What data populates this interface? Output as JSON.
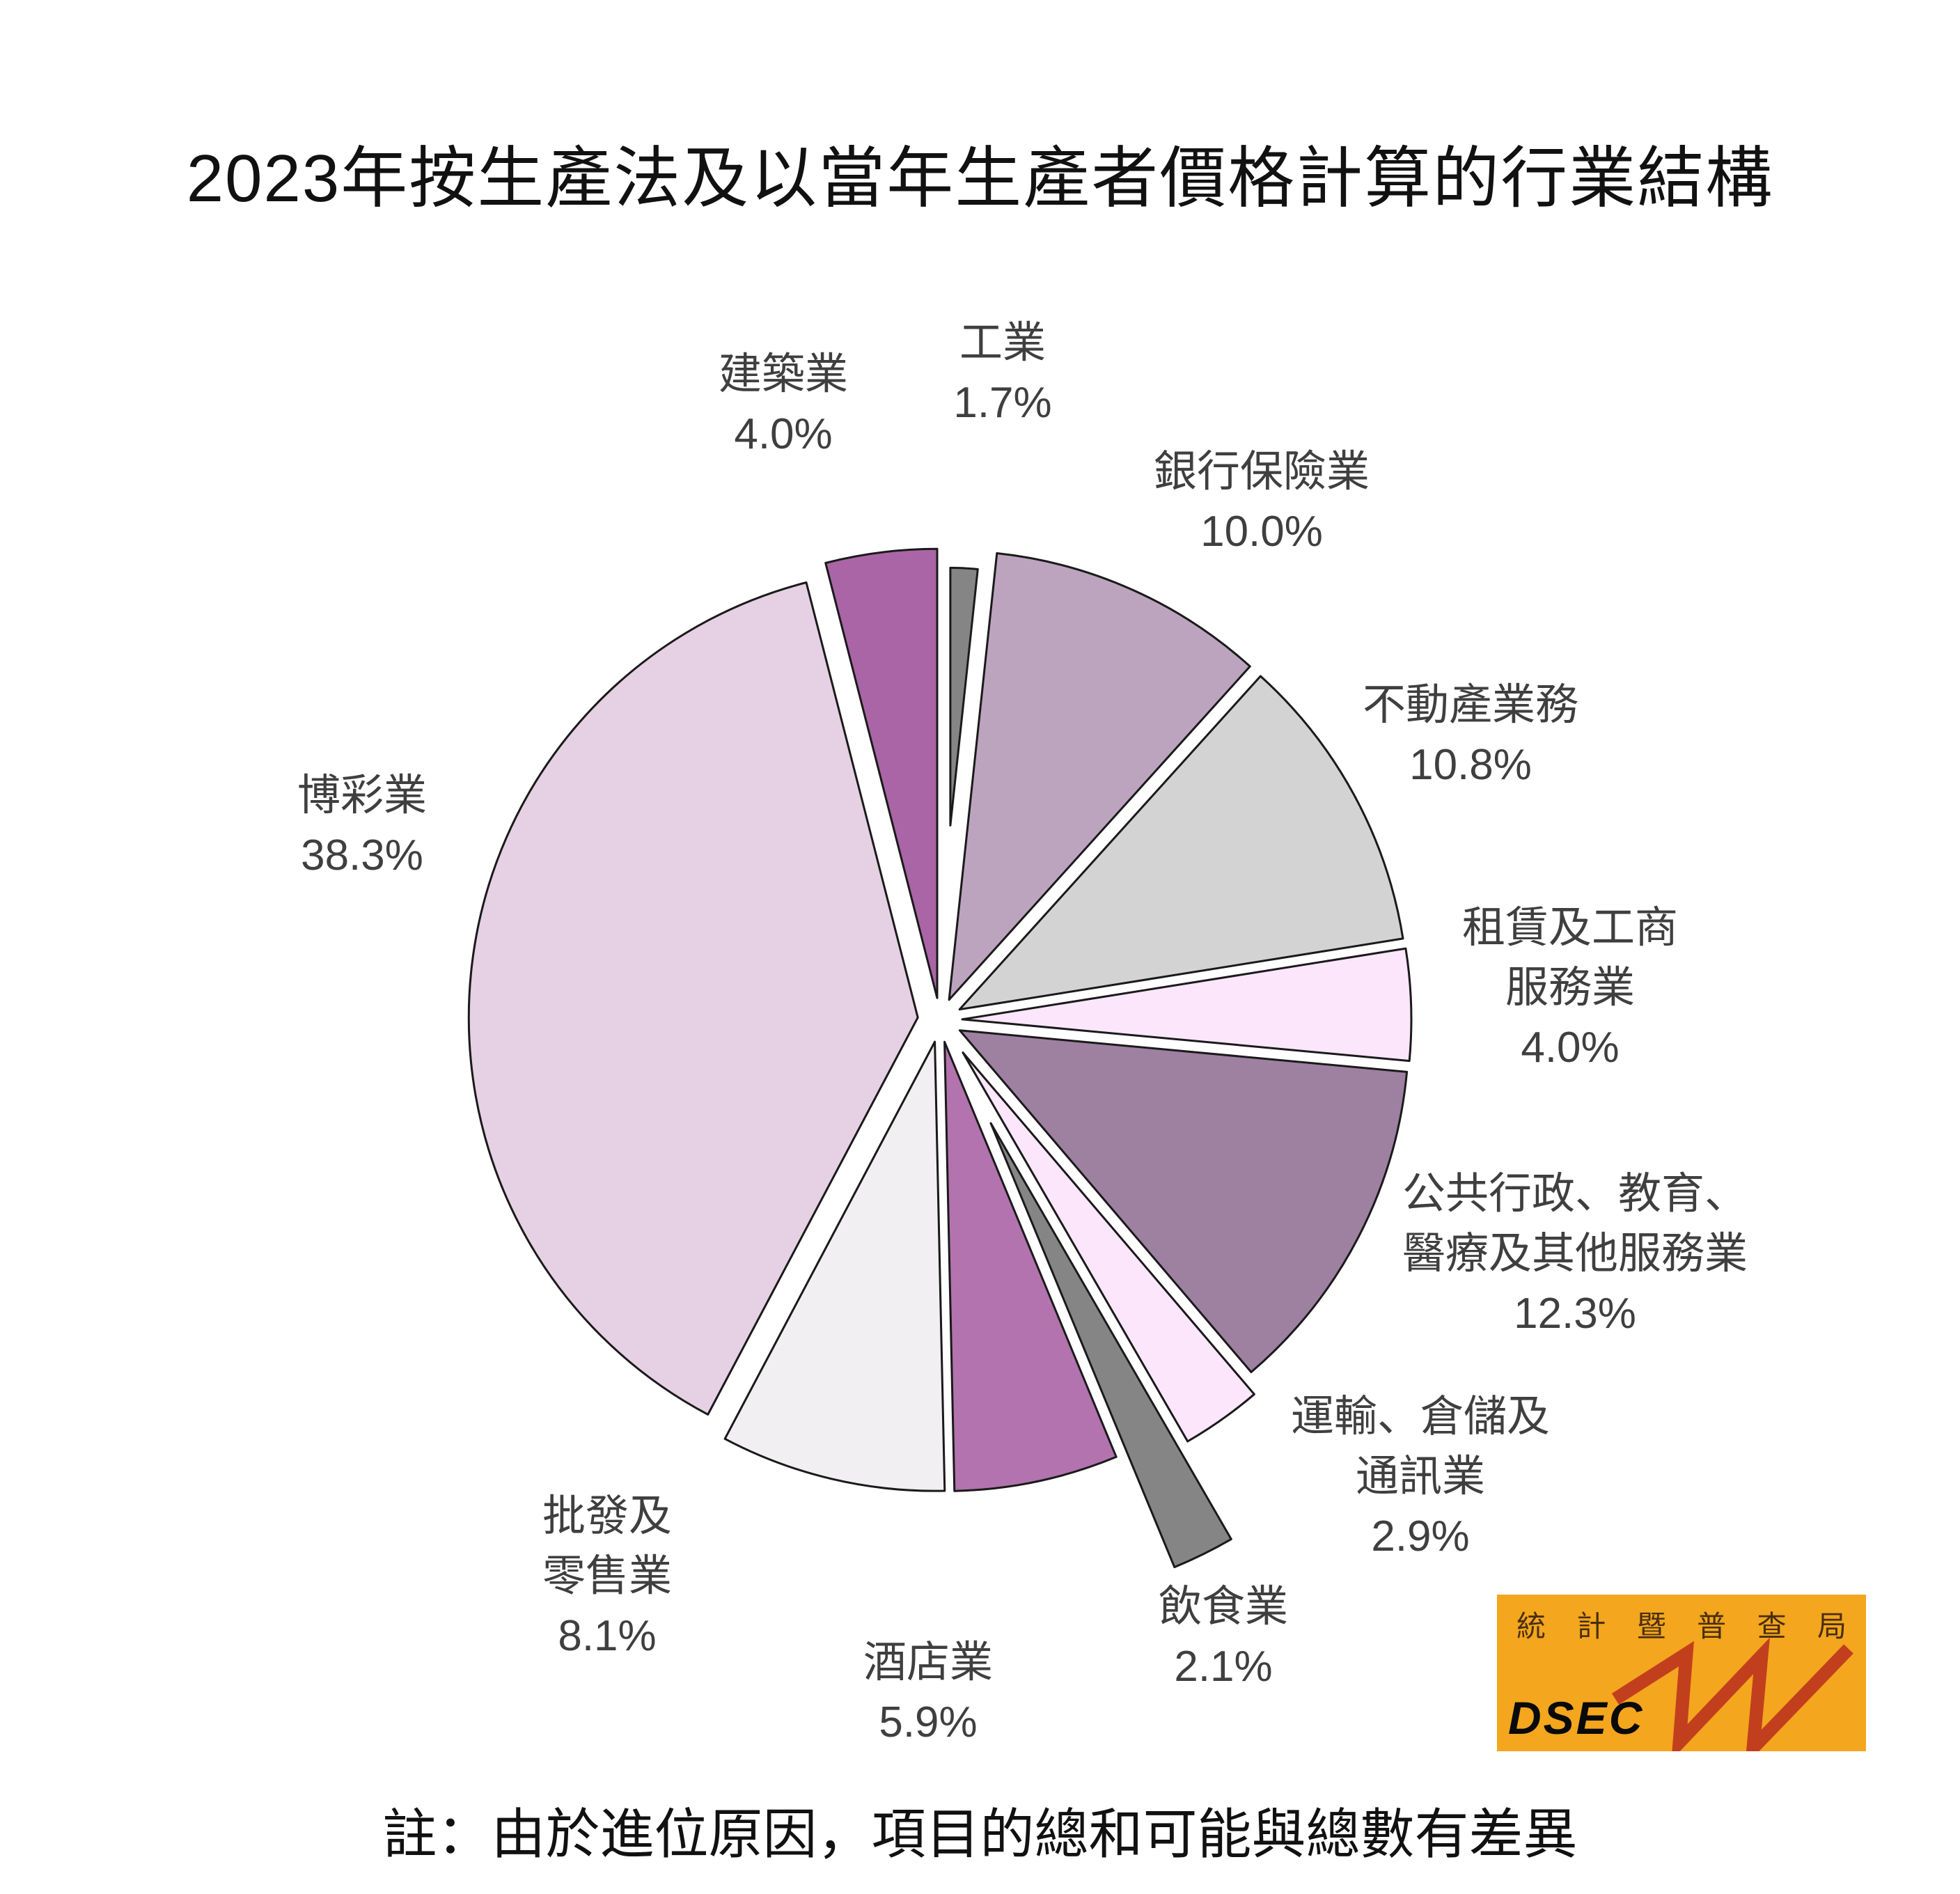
{
  "title": "2023年按生產法及以當年生產者價格計算的行業結構",
  "note": "註：由於進位原因，項目的總和可能與總數有差異",
  "chart_data": {
    "type": "pie",
    "title": "2023年按生產法及以當年生產者價格計算的行業結構",
    "unit": "%",
    "start_angle": "12 o'clock, clockwise",
    "legend_position": "none",
    "exploded": true,
    "stroke_color": "#1a1a1a",
    "categories": [
      "工業",
      "銀行保險業",
      "不動產業務",
      "租賃及工商服務業",
      "公共行政、教育、醫療及其他服務業",
      "運輸、倉儲及通訊業",
      "飲食業",
      "酒店業",
      "批發及零售業",
      "博彩業",
      "建築業"
    ],
    "values": [
      1.7,
      10.0,
      10.8,
      4.0,
      12.3,
      2.9,
      2.1,
      5.9,
      8.1,
      38.3,
      4.0
    ],
    "slices": [
      {
        "id": "industry",
        "name": "工業",
        "lines": [
          "工業"
        ],
        "value": 1.7,
        "pct": "1.7%",
        "color": "#858585"
      },
      {
        "id": "banking",
        "name": "銀行保險業",
        "lines": [
          "銀行保險業"
        ],
        "value": 10.0,
        "pct": "10.0%",
        "color": "#BCA4BF"
      },
      {
        "id": "realestate",
        "name": "不動產業務",
        "lines": [
          "不動產業務"
        ],
        "value": 10.8,
        "pct": "10.8%",
        "color": "#D3D3D3"
      },
      {
        "id": "rental",
        "name": "租賃及工商服務業",
        "lines": [
          "租賃及工商",
          "服務業"
        ],
        "value": 4.0,
        "pct": "4.0%",
        "color": "#FBE6FB"
      },
      {
        "id": "public_admin",
        "name": "公共行政、教育、醫療及其他服務業",
        "lines": [
          "公共行政、教育、",
          "醫療及其他服務業"
        ],
        "value": 12.3,
        "pct": "12.3%",
        "color": "#9E80A1"
      },
      {
        "id": "transport",
        "name": "運輸、倉儲及通訊業",
        "lines": [
          "運輸、倉儲及",
          "通訊業"
        ],
        "value": 2.9,
        "pct": "2.9%",
        "color": "#FBE6FB"
      },
      {
        "id": "restaurants",
        "name": "飲食業",
        "lines": [
          "飲食業"
        ],
        "value": 2.1,
        "pct": "2.1%",
        "color": "#858585"
      },
      {
        "id": "hotels",
        "name": "酒店業",
        "lines": [
          "酒店業"
        ],
        "value": 5.9,
        "pct": "5.9%",
        "color": "#B273AE"
      },
      {
        "id": "wholesale_retail",
        "name": "批發及零售業",
        "lines": [
          "批發及",
          "零售業"
        ],
        "value": 8.1,
        "pct": "8.1%",
        "color": "#F1EFF1"
      },
      {
        "id": "gaming",
        "name": "博彩業",
        "lines": [
          "博彩業"
        ],
        "value": 38.3,
        "pct": "38.3%",
        "color": "#E5D1E3"
      },
      {
        "id": "construction",
        "name": "建築業",
        "lines": [
          "建築業"
        ],
        "value": 4.0,
        "pct": "4.0%",
        "color": "#AA65A6"
      }
    ],
    "note": "註：由於進位原因，項目的總和可能與總數有差異"
  },
  "logo": {
    "org_chars": [
      "統",
      "計",
      "暨",
      "普",
      "查",
      "局"
    ],
    "org_name": "統計暨普查局",
    "abbr": "DSEC",
    "bg_color": "#F3A61E",
    "zigzag_color": "#C23F1E"
  }
}
